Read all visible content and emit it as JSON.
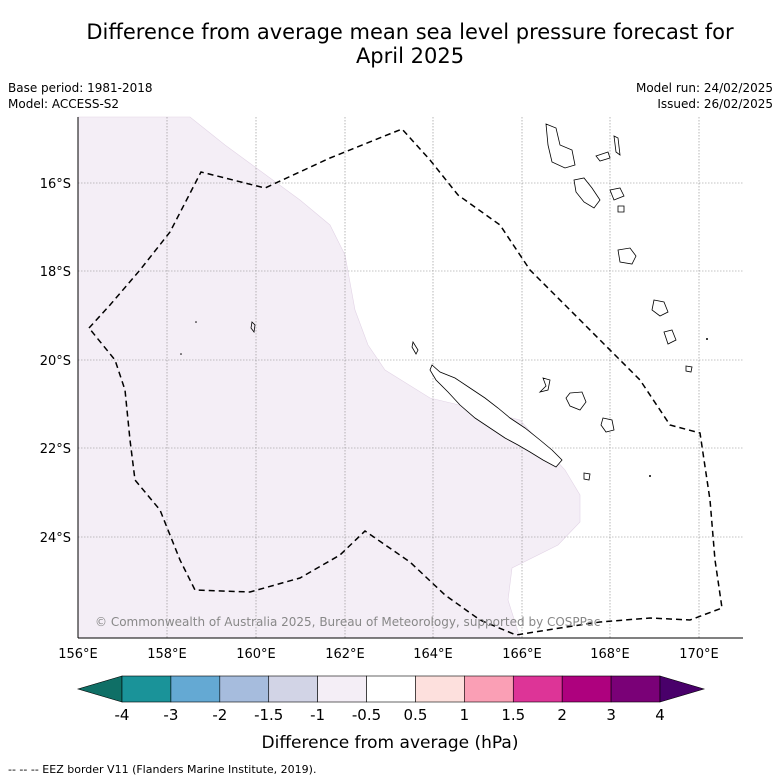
{
  "title_line1": "Difference from average mean sea level pressure forecast for",
  "title_line2": "April 2025",
  "base_period": "Base period: 1981-2018",
  "model": "Model: ACCESS-S2",
  "model_run": "Model run: 24/02/2025",
  "issued": "Issued: 26/02/2025",
  "copyright": "© Commonwealth of Australia 2025, Bureau of Meteorology, supported by COSPPac",
  "footer": "--  --  -- EEZ border V11 (Flanders Marine Institute, 2019).",
  "lon_ticks": [
    "156°E",
    "158°E",
    "160°E",
    "162°E",
    "164°E",
    "166°E",
    "168°E",
    "170°E"
  ],
  "lat_ticks": [
    "16°S",
    "18°S",
    "20°S",
    "22°S",
    "24°S"
  ],
  "colorbar": {
    "label": "Difference from average (hPa)",
    "tick_labels": [
      "-4",
      "-3",
      "-2",
      "-1.5",
      "-1",
      "-0.5",
      "0.5",
      "1",
      "1.5",
      "2",
      "3",
      "4"
    ],
    "colors": [
      "#0f6f66",
      "#1a9399",
      "#64a9d3",
      "#a6bcdd",
      "#d2d4e6",
      "#f4eef6",
      "#ffffff",
      "#fde0dd",
      "#fa9fb5",
      "#dd3497",
      "#ae017e",
      "#7a0177",
      "#49006a"
    ]
  },
  "legend_colors": {
    "shade_area": "#f4eef6",
    "eez_line": "#000000"
  }
}
